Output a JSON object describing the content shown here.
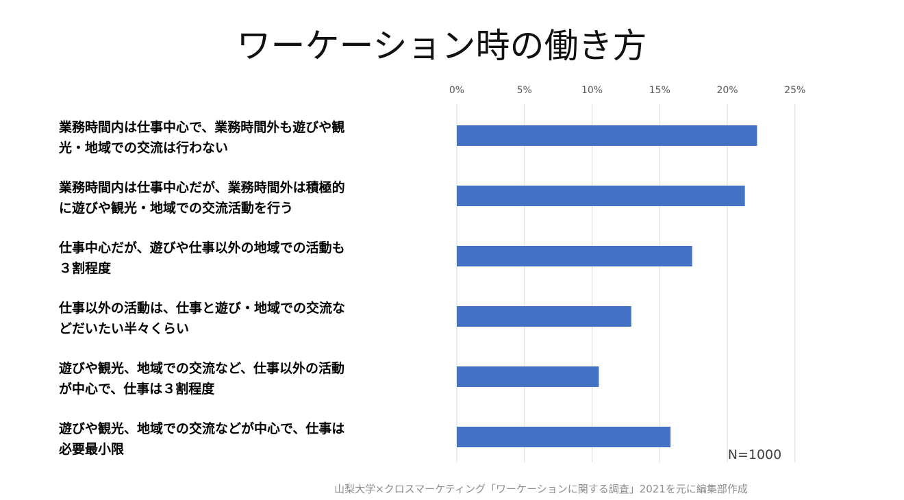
{
  "chart_data": {
    "type": "bar",
    "orientation": "horizontal",
    "title": "ワーケーション時の働き方",
    "categories": [
      [
        "業務時間内は仕事中心で、業務時間外も遊びや観",
        "光・地域での交流は行わない"
      ],
      [
        "業務時間内は仕事中心だが、業務時間外は積極的",
        "に遊びや観光・地域での交流活動を行う"
      ],
      [
        "仕事中心だが、遊びや仕事以外の地域での活動も",
        "３割程度"
      ],
      [
        "仕事以外の活動は、仕事と遊び・地域での交流な",
        "どだいたい半々くらい"
      ],
      [
        "遊びや観光、地域での交流など、仕事以外の活動",
        "が中心で、仕事は３割程度"
      ],
      [
        "遊びや観光、地域での交流などが中心で、仕事は",
        "必要最小限"
      ]
    ],
    "values": [
      22.2,
      21.3,
      17.4,
      12.9,
      10.5,
      15.8
    ],
    "xlim": [
      0,
      25
    ],
    "xticks": [
      "0%",
      "5%",
      "10%",
      "15%",
      "20%",
      "25%"
    ],
    "grid": true,
    "bar_color": "#4472C4",
    "annotation": "N=1000",
    "source": "山梨大学×クロスマーケティング「ワーケーションに関する調査」2021を元に編集部作成"
  }
}
